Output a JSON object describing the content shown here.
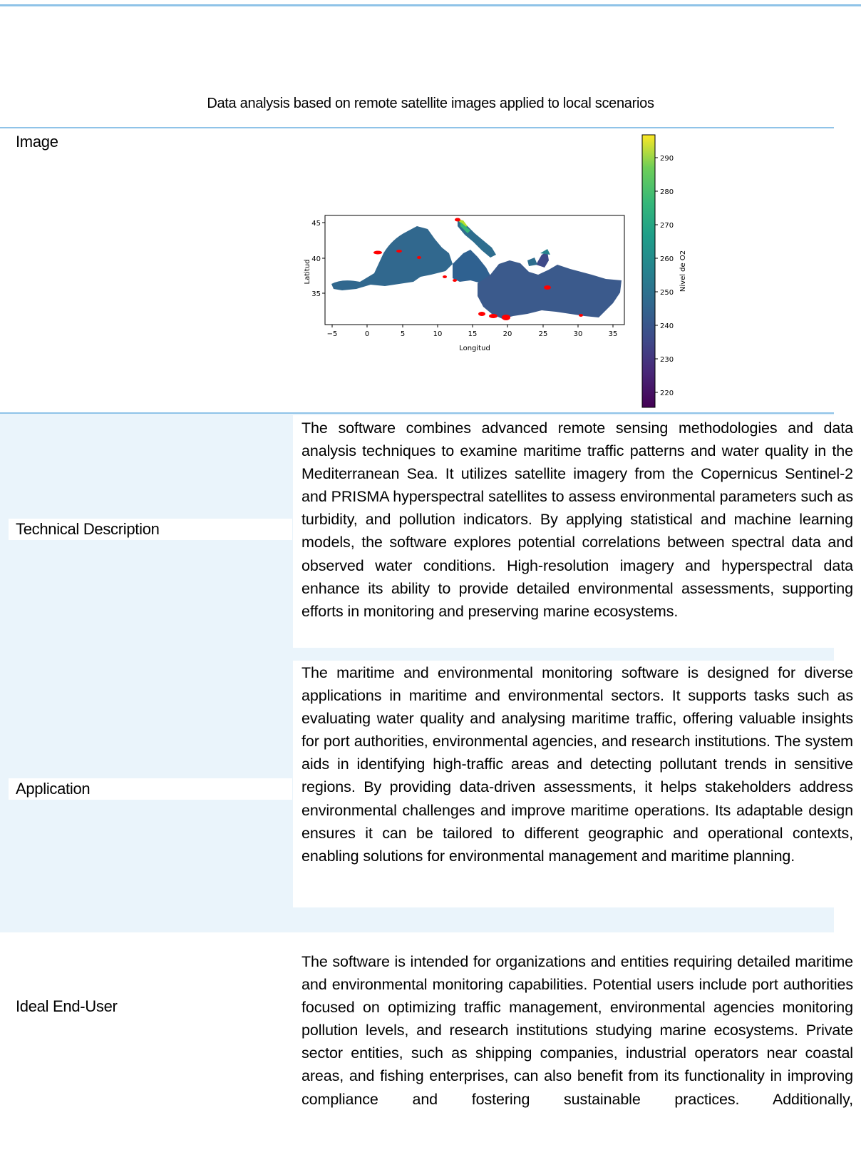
{
  "document": {
    "title": "Data analysis based on remote satellite images applied to local scenarios"
  },
  "rows": {
    "image": {
      "label": "Image"
    },
    "technical_description": {
      "label": "Technical Description",
      "text": "The software combines advanced remote sensing methodologies and data analysis techniques to examine maritime traffic patterns and water quality in the Mediterranean Sea. It utilizes satellite imagery from the Copernicus Sentinel-2 and PRISMA hyperspectral satellites to assess environmental parameters such as turbidity, and pollution indicators. By applying statistical and machine learning models, the software explores potential correlations between spectral data and observed water conditions. High-resolution imagery and hyperspectral data enhance its ability to provide detailed environmental assessments, supporting efforts in monitoring and preserving marine ecosystems."
    },
    "application": {
      "label": "Application",
      "text": "The maritime and environmental monitoring software is designed for diverse applications in maritime and environmental sectors. It supports tasks such as evaluating water quality and analysing maritime traffic, offering valuable insights for port authorities, environmental agencies, and research institutions. The system aids in identifying high-traffic areas and detecting pollutant trends in sensitive regions. By providing data-driven assessments, it helps stakeholders address environmental challenges and improve maritime operations. Its adaptable design ensures it can be tailored to different geographic and operational contexts, enabling solutions for environmental management and maritime planning."
    },
    "ideal_end_user": {
      "label": "Ideal End-User",
      "text": "The software is intended for organizations and entities requiring detailed maritime and environmental monitoring capabilities. Potential users include port authorities focused on optimizing traffic management, environmental agencies monitoring pollution levels, and research institutions studying marine ecosystems. Private sector entities, such as shipping companies, industrial operators near coastal areas, and fishing enterprises, can also benefit from its functionality in improving compliance and fostering sustainable practices. Additionally,"
    }
  },
  "figure": {
    "xlabel": "Longitud",
    "ylabel": "Latitud",
    "colorbar_label": "Nivel de O2",
    "xticks": [
      "−5",
      "0",
      "5",
      "10",
      "15",
      "20",
      "25",
      "30",
      "35"
    ],
    "yticks": [
      "45",
      "40",
      "35"
    ],
    "colorbar_ticks": [
      "290",
      "280",
      "270",
      "260",
      "250",
      "240",
      "230",
      "220"
    ],
    "colormap": "viridis",
    "sea_color": "#3b5a8c",
    "hotspot_color": "#ff0000",
    "chart_data": {
      "type": "heatmap",
      "x_range": [
        -6,
        36
      ],
      "y_range": [
        30.5,
        46
      ],
      "colorbar_range": [
        216,
        296
      ]
    }
  }
}
